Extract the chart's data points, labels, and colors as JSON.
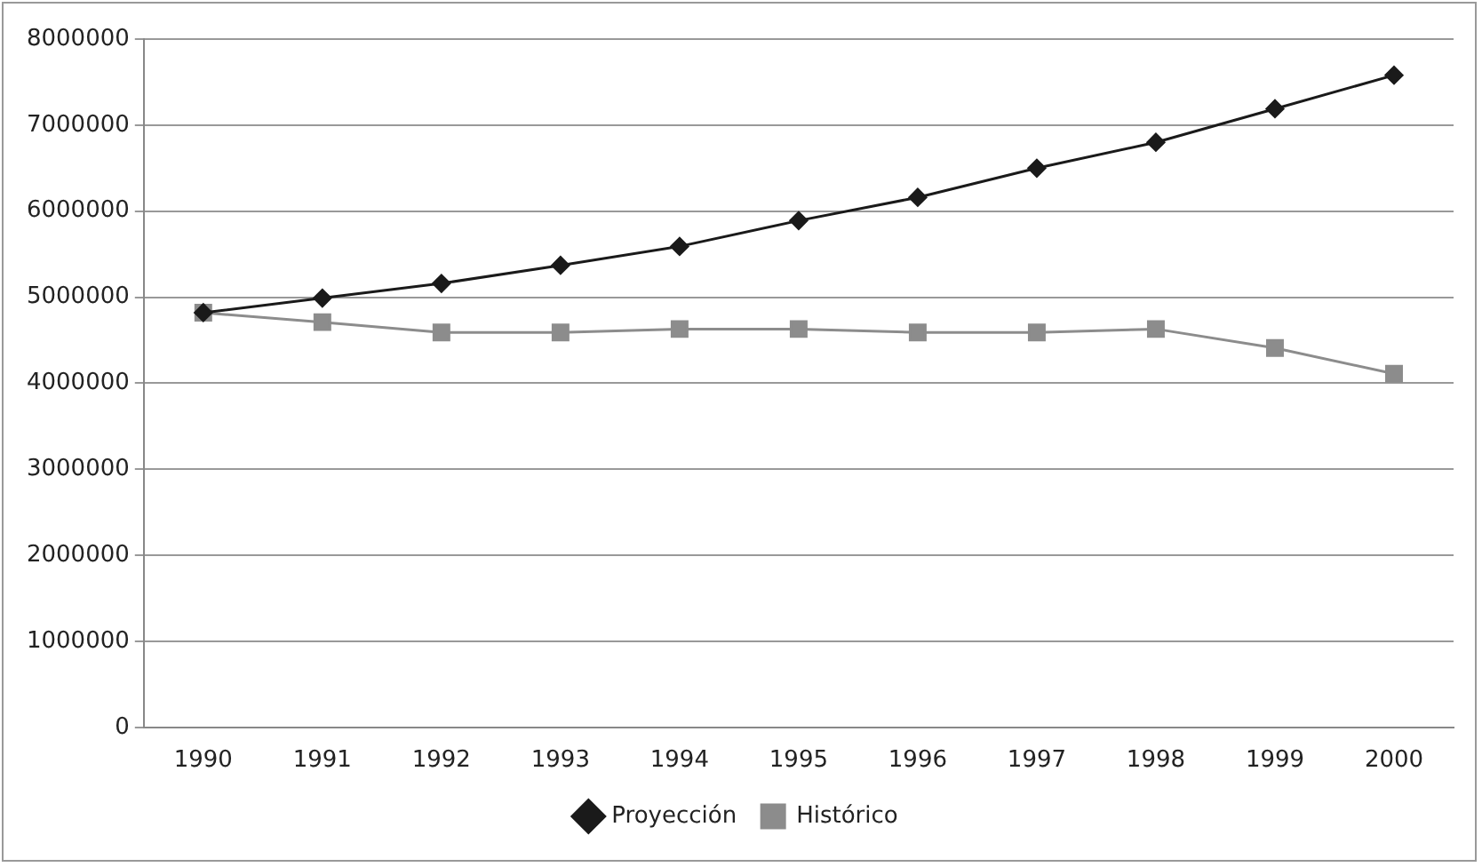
{
  "chart_data": {
    "type": "line",
    "categories": [
      "1990",
      "1991",
      "1992",
      "1993",
      "1994",
      "1995",
      "1996",
      "1997",
      "1998",
      "1999",
      "2000"
    ],
    "series": [
      {
        "name": "Proyección",
        "color": "#1a1a1a",
        "marker": "diamond",
        "values": [
          4820000,
          4990000,
          5160000,
          5370000,
          5590000,
          5890000,
          6160000,
          6500000,
          6800000,
          7190000,
          7580000
        ]
      },
      {
        "name": "Histórico",
        "color": "#8c8c8c",
        "marker": "square",
        "values": [
          4820000,
          4710000,
          4590000,
          4590000,
          4630000,
          4630000,
          4590000,
          4590000,
          4630000,
          4410000,
          4110000
        ]
      }
    ],
    "ylim": [
      0,
      8000000
    ],
    "yticks": [
      0,
      1000000,
      2000000,
      3000000,
      4000000,
      5000000,
      6000000,
      7000000,
      8000000
    ],
    "grid": "y",
    "legend": "bottom"
  }
}
